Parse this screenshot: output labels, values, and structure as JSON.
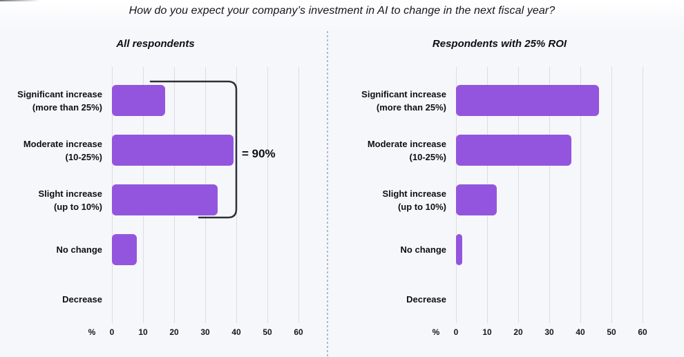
{
  "page": {
    "title": "How do you expect your company’s investment in AI to change in the next fiscal year?"
  },
  "colors": {
    "bar_color": "#9455de",
    "divider_dot_color": "#a9bdd3",
    "bracket_color": "#2f2f38",
    "gridline_color": "#dcdce1"
  },
  "chart_data": [
    {
      "type": "bar",
      "orientation": "horizontal",
      "title": "All respondents",
      "unit": "%",
      "categories": [
        [
          "Significant increase",
          "(more than 25%)"
        ],
        [
          "Moderate increase",
          "(10-25%)"
        ],
        [
          "Slight increase",
          "(up to 10%)"
        ],
        [
          "No change"
        ],
        [
          "Decrease"
        ]
      ],
      "values": [
        17,
        39,
        34,
        8,
        0
      ],
      "xticks": [
        0,
        10,
        20,
        30,
        40,
        50,
        60
      ],
      "xlim": [
        0,
        63
      ],
      "grid": true,
      "legend": "none",
      "annotation": {
        "text": "= 90%",
        "covers": [
          "Significant increase",
          "Moderate increase",
          "Slight increase"
        ]
      }
    },
    {
      "type": "bar",
      "orientation": "horizontal",
      "title": "Respondents with 25% ROI",
      "unit": "%",
      "categories": [
        [
          "Significant increase",
          "(more than 25%)"
        ],
        [
          "Moderate increase",
          "(10-25%)"
        ],
        [
          "Slight increase",
          "(up to 10%)"
        ],
        [
          "No change"
        ],
        [
          "Decrease"
        ]
      ],
      "values": [
        46,
        37,
        13,
        2,
        0
      ],
      "xticks": [
        0,
        10,
        20,
        30,
        40,
        50,
        60
      ],
      "xlim": [
        0,
        63
      ],
      "grid": true,
      "legend": "none"
    }
  ]
}
